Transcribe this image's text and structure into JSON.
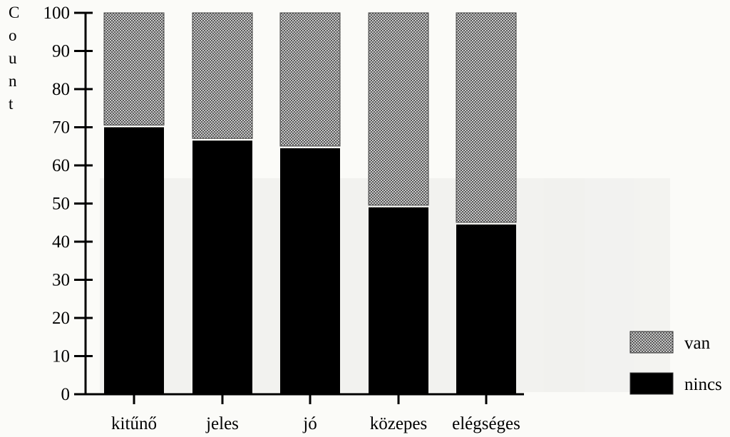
{
  "chart_data": {
    "type": "bar",
    "stacked": true,
    "categories": [
      "kitűnő",
      "jeles",
      "jó",
      "közepes",
      "elégséges"
    ],
    "series": [
      {
        "name": "nincs",
        "values": [
          70,
          66.5,
          64.5,
          49,
          44.5
        ],
        "color": "#000000",
        "pattern": "solid"
      },
      {
        "name": "van",
        "values": [
          30,
          33.5,
          35.5,
          51,
          55.5
        ],
        "color": "#8c8c8c",
        "pattern": "crosshatch"
      }
    ],
    "xlabel": "",
    "ylabel": "Count",
    "ylim": [
      0,
      100
    ],
    "yticks": [
      0,
      10,
      20,
      30,
      40,
      50,
      60,
      70,
      80,
      90,
      100
    ],
    "grid": false,
    "legend": {
      "placement": "bottom-right",
      "order": [
        "van",
        "nincs"
      ]
    }
  }
}
